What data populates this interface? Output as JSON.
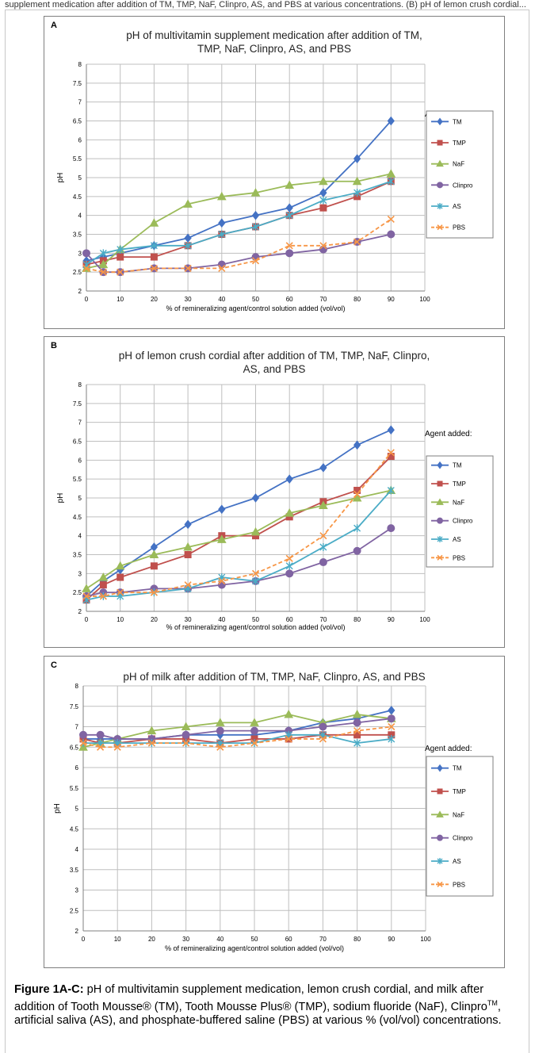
{
  "page": {
    "top_text": "supplement medication after addition of TM, TMP, NaF, Clinpro, AS, and PBS at various concentrations. (B) pH of lemon crush cordial...",
    "caption_label": "Figure 1A-C:",
    "caption_text": " pH of multivitamin supplement medication, lemon crush cordial, and milk after addition of Tooth Mousse® (TM), Tooth Mousse Plus® (TMP), sodium fluoride (NaF), Clinpro",
    "caption_tm": "TM",
    "caption_text2": ", artificial saliva (AS), and phosphate-buffered saline (PBS) at various % (vol/vol) concentrations."
  },
  "series_styles": [
    {
      "name": "TM",
      "color": "#4472c4",
      "marker": "diamond",
      "dash": false
    },
    {
      "name": "TMP",
      "color": "#c0504d",
      "marker": "square",
      "dash": false
    },
    {
      "name": "NaF",
      "color": "#9bbb59",
      "marker": "triangle",
      "dash": false
    },
    {
      "name": "Clinpro",
      "color": "#8064a2",
      "marker": "circle",
      "dash": false
    },
    {
      "name": "AS",
      "color": "#4bacc6",
      "marker": "star",
      "dash": false
    },
    {
      "name": "PBS",
      "color": "#f79646",
      "marker": "x",
      "dash": true
    }
  ],
  "chart_data": [
    {
      "panel_letter": "A",
      "type": "line",
      "title": "pH of multivitamin supplement medication after addition of TM, TMP, NaF, Clinpro, AS, and PBS",
      "title_lines": [
        "pH of multivitamin supplement medication after addition of TM,",
        "TMP, NaF, Clinpro, AS, and PBS"
      ],
      "xlabel": "% of remineralizing agent/control solution added (vol/vol)",
      "ylabel": "pH",
      "xlim": [
        0,
        100
      ],
      "ylim": [
        2,
        8
      ],
      "xticks": [
        "0",
        "10",
        "20",
        "30",
        "40",
        "50",
        "60",
        "70",
        "80",
        "90",
        "100"
      ],
      "yticks": [
        "2",
        "2.5",
        "3",
        "3.5",
        "4",
        "4.5",
        "5",
        "5.5",
        "6",
        "6.5",
        "7",
        "7.5",
        "8"
      ],
      "legend_title": "Agent added:",
      "legend_position": "right",
      "x": [
        0,
        5,
        10,
        20,
        30,
        40,
        50,
        60,
        70,
        80,
        90
      ],
      "series": [
        {
          "name": "TM",
          "values": [
            2.8,
            2.9,
            3.0,
            3.2,
            3.4,
            3.8,
            4.0,
            4.2,
            4.6,
            5.5,
            6.5
          ]
        },
        {
          "name": "TMP",
          "values": [
            2.7,
            2.8,
            2.9,
            2.9,
            3.2,
            3.5,
            3.7,
            4.0,
            4.2,
            4.5,
            4.9
          ]
        },
        {
          "name": "NaF",
          "values": [
            2.6,
            2.7,
            3.1,
            3.8,
            4.3,
            4.5,
            4.6,
            4.8,
            4.9,
            4.9,
            5.1
          ]
        },
        {
          "name": "Clinpro",
          "values": [
            3.0,
            2.5,
            2.5,
            2.6,
            2.6,
            2.7,
            2.9,
            3.0,
            3.1,
            3.3,
            3.5
          ]
        },
        {
          "name": "AS",
          "values": [
            2.7,
            3.0,
            3.1,
            3.2,
            3.2,
            3.5,
            3.7,
            4.0,
            4.4,
            4.6,
            4.9
          ]
        },
        {
          "name": "PBS",
          "values": [
            2.6,
            2.5,
            2.5,
            2.6,
            2.6,
            2.6,
            2.8,
            3.2,
            3.2,
            3.3,
            3.9
          ]
        }
      ]
    },
    {
      "panel_letter": "B",
      "type": "line",
      "title": "pH of lemon crush cordial after addition of TM, TMP, NaF, Clinpro, AS, and PBS",
      "title_lines": [
        "pH of lemon crush cordial after addition of TM, TMP, NaF, Clinpro,",
        "AS, and PBS"
      ],
      "xlabel": "% of remineralizing agent/control solution added (vol/vol)",
      "ylabel": "pH",
      "xlim": [
        0,
        100
      ],
      "ylim": [
        2,
        8
      ],
      "xticks": [
        "0",
        "10",
        "20",
        "30",
        "40",
        "50",
        "60",
        "70",
        "80",
        "90",
        "100"
      ],
      "yticks": [
        "2",
        "2.5",
        "3",
        "3.5",
        "4",
        "4.5",
        "5",
        "5.5",
        "6",
        "6.5",
        "7",
        "7.5",
        "8"
      ],
      "legend_title": "Agent added:",
      "legend_position": "right",
      "x": [
        0,
        5,
        10,
        20,
        30,
        40,
        50,
        60,
        70,
        80,
        90
      ],
      "series": [
        {
          "name": "TM",
          "values": [
            2.4,
            2.8,
            3.1,
            3.7,
            4.3,
            4.7,
            5.0,
            5.5,
            5.8,
            6.4,
            6.8
          ]
        },
        {
          "name": "TMP",
          "values": [
            2.3,
            2.7,
            2.9,
            3.2,
            3.5,
            4.0,
            4.0,
            4.5,
            4.9,
            5.2,
            6.1
          ]
        },
        {
          "name": "NaF",
          "values": [
            2.6,
            2.9,
            3.2,
            3.5,
            3.7,
            3.9,
            4.1,
            4.6,
            4.8,
            5.0,
            5.2
          ]
        },
        {
          "name": "Clinpro",
          "values": [
            2.4,
            2.5,
            2.5,
            2.6,
            2.6,
            2.7,
            2.8,
            3.0,
            3.3,
            3.6,
            4.2
          ]
        },
        {
          "name": "AS",
          "values": [
            2.3,
            2.4,
            2.4,
            2.5,
            2.6,
            2.9,
            2.8,
            3.2,
            3.7,
            4.2,
            5.2
          ]
        },
        {
          "name": "PBS",
          "values": [
            2.4,
            2.4,
            2.5,
            2.5,
            2.7,
            2.8,
            3.0,
            3.4,
            4.0,
            5.1,
            6.2
          ]
        }
      ]
    },
    {
      "panel_letter": "C",
      "type": "line",
      "title": "pH of milk after addition of TM, TMP, NaF, Clinpro, AS, and PBS",
      "title_lines": [
        "pH of milk after addition of TM, TMP, NaF, Clinpro, AS, and PBS"
      ],
      "xlabel": "% of remineralizing agent/control solution added (vol/vol)",
      "ylabel": "pH",
      "xlim": [
        0,
        100
      ],
      "ylim": [
        2,
        8
      ],
      "xticks": [
        "0",
        "10",
        "20",
        "30",
        "40",
        "50",
        "60",
        "70",
        "80",
        "90",
        "100"
      ],
      "yticks": [
        "2",
        "2.5",
        "3",
        "3.5",
        "4",
        "4.5",
        "5",
        "5.5",
        "6",
        "6.5",
        "7",
        "7.5",
        "8"
      ],
      "legend_title": "Agent added:",
      "legend_position": "right",
      "x": [
        0,
        5,
        10,
        20,
        30,
        40,
        50,
        60,
        70,
        80,
        90
      ],
      "series": [
        {
          "name": "TM",
          "values": [
            6.7,
            6.7,
            6.7,
            6.7,
            6.8,
            6.8,
            6.8,
            6.9,
            7.1,
            7.2,
            7.4
          ]
        },
        {
          "name": "TMP",
          "values": [
            6.7,
            6.6,
            6.6,
            6.7,
            6.7,
            6.6,
            6.7,
            6.7,
            6.8,
            6.8,
            6.8
          ]
        },
        {
          "name": "NaF",
          "values": [
            6.5,
            6.6,
            6.7,
            6.9,
            7.0,
            7.1,
            7.1,
            7.3,
            7.1,
            7.3,
            7.2
          ]
        },
        {
          "name": "Clinpro",
          "values": [
            6.8,
            6.8,
            6.7,
            6.7,
            6.8,
            6.9,
            6.9,
            6.9,
            7.0,
            7.1,
            7.2
          ]
        },
        {
          "name": "AS",
          "values": [
            6.6,
            6.6,
            6.6,
            6.6,
            6.6,
            6.6,
            6.6,
            6.8,
            6.8,
            6.6,
            6.7
          ]
        },
        {
          "name": "PBS",
          "values": [
            6.6,
            6.5,
            6.5,
            6.6,
            6.6,
            6.5,
            6.6,
            6.7,
            6.7,
            6.9,
            7.0
          ]
        }
      ]
    }
  ]
}
